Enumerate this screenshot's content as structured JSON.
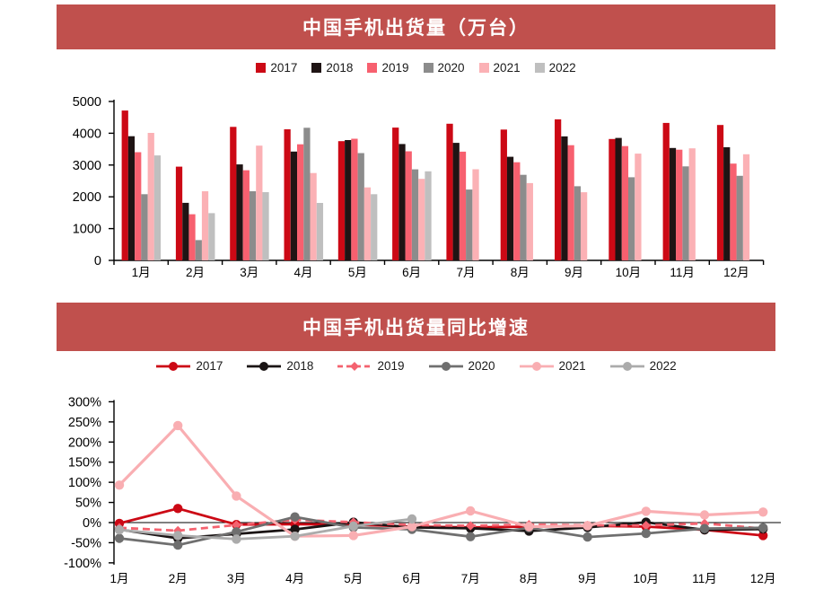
{
  "theme": {
    "banner_color": "#C0504D",
    "banner_text_color": "#FFFFFF",
    "axis_color": "#000000",
    "background_color": "#FFFFFF"
  },
  "chart_data": [
    {
      "type": "bar",
      "title": "中国手机出货量（万台）",
      "legend_position": "top",
      "grid": false,
      "categories": [
        "1月",
        "2月",
        "3月",
        "4月",
        "5月",
        "6月",
        "7月",
        "8月",
        "9月",
        "10月",
        "11月",
        "12月"
      ],
      "ylim": [
        0,
        5000
      ],
      "yticks": [
        0,
        1000,
        2000,
        3000,
        4000,
        5000
      ],
      "series": [
        {
          "name": "2017",
          "color": "#CC0915",
          "values": [
            4714,
            2948,
            4201,
            4125,
            3751,
            4179,
            4300,
            4116,
            4438,
            3818,
            4325,
            4261
          ]
        },
        {
          "name": "2018",
          "color": "#1F1414",
          "values": [
            3906,
            1812,
            3019,
            3425,
            3784,
            3661,
            3698,
            3260,
            3902,
            3853,
            3537,
            3559
          ]
        },
        {
          "name": "2019",
          "color": "#F7606F",
          "values": [
            3405,
            1451,
            2837,
            3653,
            3829,
            3431,
            3420,
            3088,
            3624,
            3597,
            3484,
            3044
          ]
        },
        {
          "name": "2020",
          "color": "#8C8C8C",
          "values": [
            2081,
            638,
            2176,
            4173,
            3376,
            2863,
            2230,
            2691,
            2334,
            2615,
            2958,
            2660
          ]
        },
        {
          "name": "2021",
          "color": "#FBB1B5",
          "values": [
            4012,
            2176,
            3609,
            2749,
            2297,
            2566,
            2868,
            2431,
            2144,
            3358,
            3525,
            3340
          ]
        },
        {
          "name": "2022",
          "color": "#BFBFBF",
          "values": [
            3302,
            1486,
            2146,
            1808,
            2081,
            2802,
            null,
            null,
            null,
            null,
            null,
            null
          ]
        }
      ]
    },
    {
      "type": "line",
      "title": "中国手机出货量同比增速",
      "legend_position": "top",
      "grid": false,
      "unit": "%",
      "categories": [
        "1月",
        "2月",
        "3月",
        "4月",
        "5月",
        "6月",
        "7月",
        "8月",
        "9月",
        "10月",
        "11月",
        "12月"
      ],
      "ylim": [
        -100,
        300
      ],
      "yticks": [
        300,
        250,
        200,
        150,
        100,
        50,
        0,
        -50,
        -100
      ],
      "series": [
        {
          "name": "2017",
          "color": "#CC0915",
          "dashed": false,
          "marker": "circle",
          "values": [
            -2,
            35,
            -5,
            -4,
            -5,
            -10,
            -12,
            -10,
            -8,
            -10,
            -18,
            -32
          ]
        },
        {
          "name": "2018",
          "color": "#1A1414",
          "dashed": false,
          "marker": "circle",
          "values": [
            -17,
            -39,
            -28,
            -17,
            1,
            -12,
            -14,
            -21,
            -12,
            1,
            -18,
            -16
          ]
        },
        {
          "name": "2019",
          "color": "#F4626F",
          "dashed": true,
          "marker": "diamond",
          "values": [
            -13,
            -20,
            -6,
            7,
            1,
            -6,
            -8,
            -5,
            -7,
            -7,
            -2,
            -15
          ]
        },
        {
          "name": "2020",
          "color": "#6F6F6F",
          "dashed": false,
          "marker": "circle",
          "values": [
            -39,
            -56,
            -23,
            14,
            -12,
            -17,
            -35,
            -13,
            -36,
            -27,
            -15,
            -13
          ]
        },
        {
          "name": "2021",
          "color": "#F9AEB2",
          "dashed": false,
          "marker": "circle",
          "values": [
            93,
            241,
            66,
            -34,
            -32,
            -10,
            29,
            -10,
            -8,
            28,
            19,
            26
          ]
        },
        {
          "name": "2022",
          "color": "#ABABAB",
          "dashed": false,
          "marker": "circle",
          "values": [
            -18,
            -32,
            -41,
            -34,
            -9,
            9,
            null,
            null,
            null,
            null,
            null,
            null
          ]
        }
      ]
    }
  ]
}
